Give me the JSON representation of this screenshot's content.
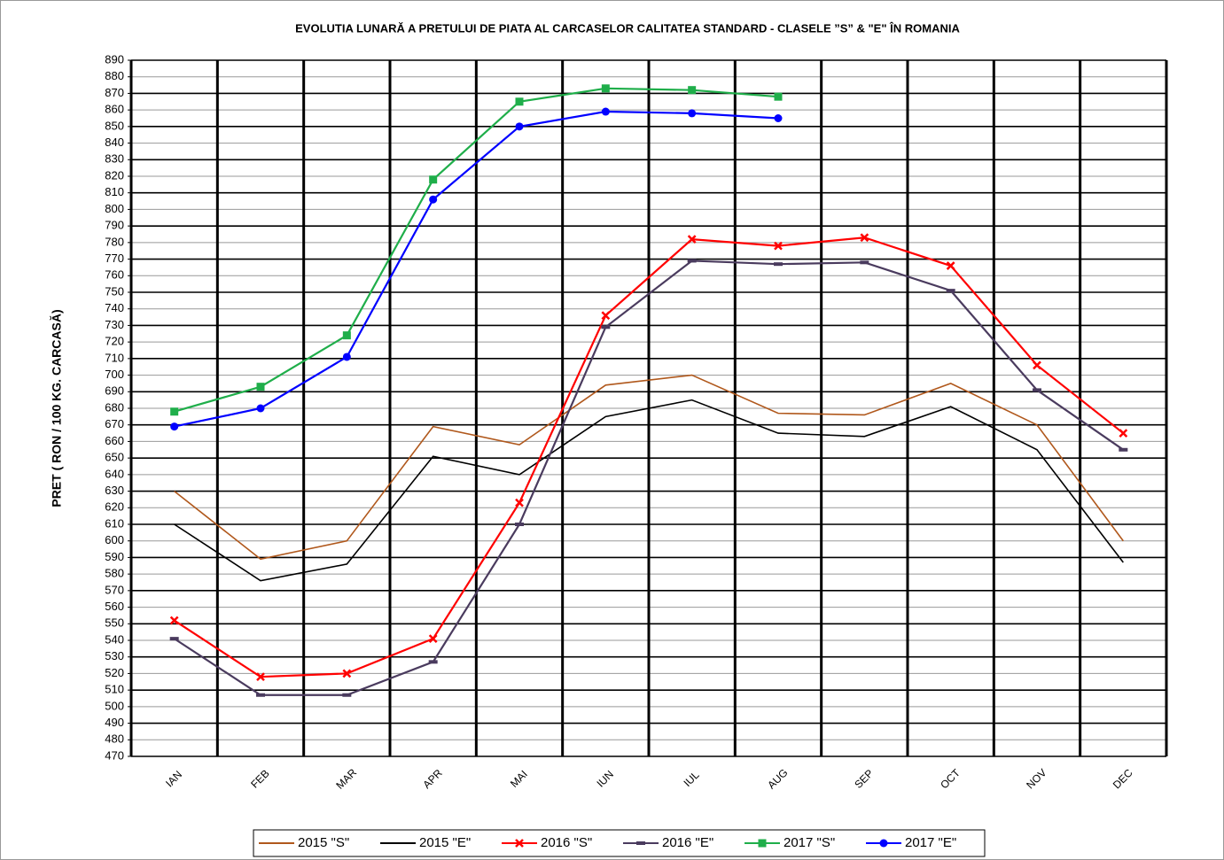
{
  "chart_data": {
    "type": "line",
    "title": "EVOLUTIA LUNARĂ A PRETULUI  DE PIATA  AL CARCASELOR CALITATEA STANDARD - CLASELE ”S” & \"E\"  ÎN ROMANIA",
    "y_label": "PRET ( RON / 100 KG. CARCASĂ)",
    "categories": [
      "IAN",
      "FEB",
      "MAR",
      "APR",
      "MAI",
      "IUN",
      "IUL",
      "AUG",
      "SEP",
      "OCT",
      "NOV",
      "DEC"
    ],
    "ylim": [
      470,
      890
    ],
    "yticks": [
      470,
      480,
      490,
      500,
      510,
      520,
      530,
      540,
      550,
      560,
      570,
      580,
      590,
      600,
      610,
      620,
      630,
      640,
      650,
      660,
      670,
      680,
      690,
      700,
      710,
      720,
      730,
      740,
      750,
      760,
      770,
      780,
      790,
      800,
      810,
      820,
      830,
      840,
      850,
      860,
      870,
      880,
      890
    ],
    "grid": true,
    "legend": "bottom",
    "series": [
      {
        "name": "2015 \"S\"",
        "color": "#b0581c",
        "marker": "none",
        "values": [
          630,
          589,
          600,
          669,
          658,
          694,
          700,
          677,
          676,
          695,
          670,
          600
        ]
      },
      {
        "name": "2015 \"E\"",
        "color": "#000000",
        "marker": "none",
        "values": [
          610,
          576,
          586,
          651,
          640,
          675,
          685,
          665,
          663,
          681,
          655,
          587
        ]
      },
      {
        "name": "2016 \"S\"",
        "color": "#ff0000",
        "marker": "x",
        "values": [
          552,
          518,
          520,
          541,
          623,
          736,
          782,
          778,
          783,
          766,
          706,
          665
        ]
      },
      {
        "name": "2016 \"E\"",
        "color": "#4a3b5e",
        "marker": "dash",
        "values": [
          541,
          507,
          507,
          527,
          610,
          729,
          769,
          767,
          768,
          751,
          691,
          655
        ]
      },
      {
        "name": "2017 \"S\"",
        "color": "#1fae4a",
        "marker": "square",
        "values": [
          678,
          693,
          724,
          818,
          865,
          873,
          872,
          868,
          null,
          null,
          null,
          null
        ]
      },
      {
        "name": "2017 \"E\"",
        "color": "#0000ff",
        "marker": "circle",
        "values": [
          669,
          680,
          711,
          806,
          850,
          859,
          858,
          855,
          null,
          null,
          null,
          null
        ]
      }
    ]
  }
}
